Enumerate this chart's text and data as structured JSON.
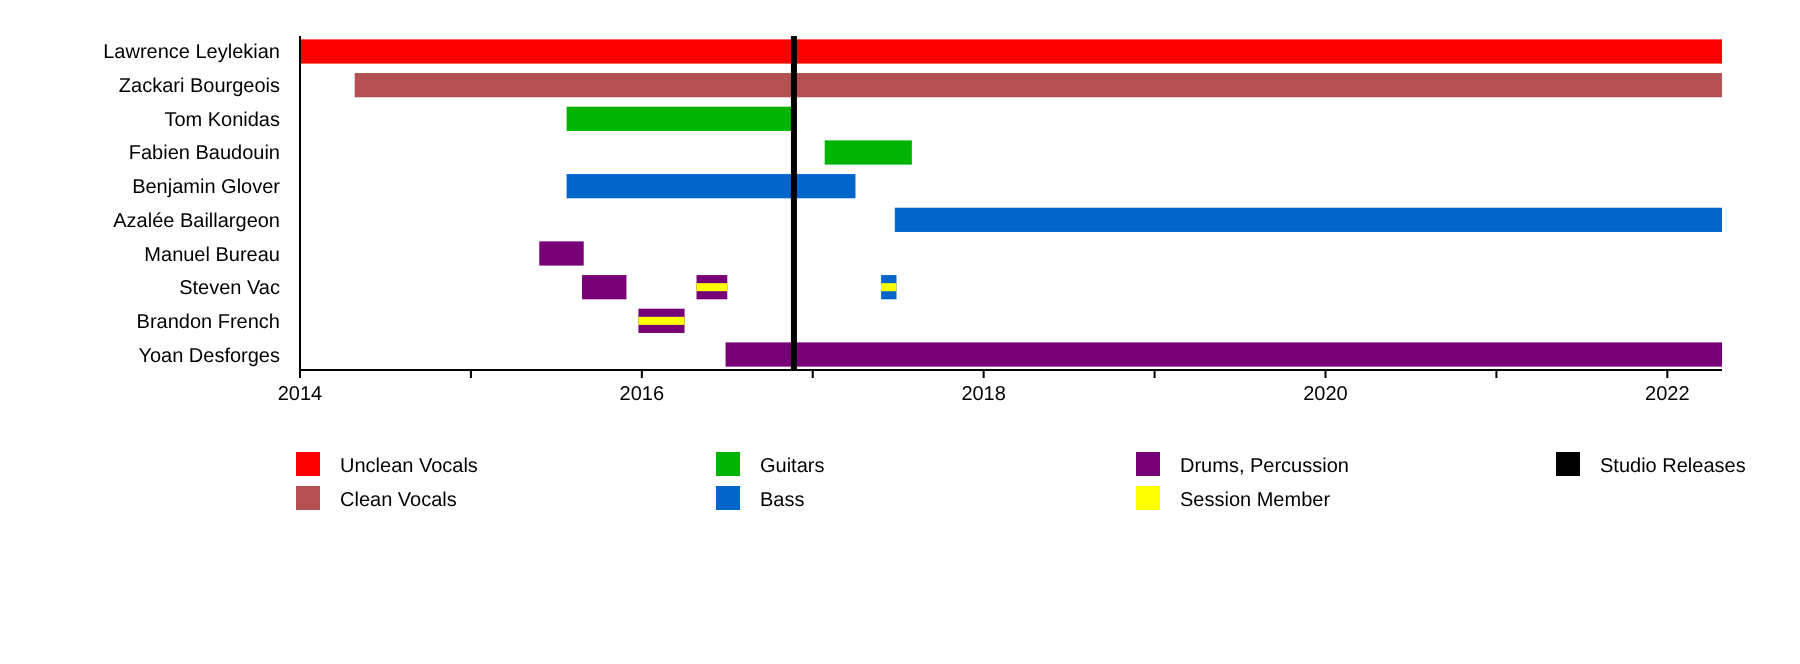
{
  "chart_data": {
    "type": "bar",
    "orientation": "horizontal",
    "categories": [
      "Lawrence Leylekian",
      "Zackari Bourgeois",
      "Tom Konidas",
      "Fabien Baudouin",
      "Benjamin Glover",
      "Azalée Baillargeon",
      "Manuel Bureau",
      "Steven Vac",
      "Brandon French",
      "Yoan Desforges"
    ],
    "xlim": [
      2014,
      2022.32
    ],
    "xticks": [
      2014,
      {
        "value": 2015,
        "label": null
      },
      2016,
      {
        "value": 2017,
        "label": null
      },
      2018,
      {
        "value": 2019,
        "label": null
      },
      2020,
      {
        "value": 2021,
        "label": null
      },
      2022
    ],
    "series": [
      {
        "name": "Unclean Vocals",
        "color": "#ff0000",
        "base": [
          2014,
          null,
          null,
          null,
          null,
          null,
          null,
          null,
          null,
          null
        ],
        "values": [
          8.32,
          null,
          null,
          null,
          null,
          null,
          null,
          null,
          null,
          null
        ]
      },
      {
        "name": "Clean Vocals",
        "color": "#b4504f",
        "base": [
          null,
          2014.32,
          null,
          null,
          null,
          null,
          null,
          null,
          null,
          null
        ],
        "values": [
          null,
          8.0,
          null,
          null,
          null,
          null,
          null,
          null,
          null,
          null
        ]
      },
      {
        "name": "Guitars",
        "color": "#00b400",
        "base": [
          null,
          null,
          2015.56,
          2017.07,
          null,
          null,
          null,
          null,
          null,
          null
        ],
        "values": [
          null,
          null,
          1.33,
          0.51,
          null,
          null,
          null,
          null,
          null,
          null
        ]
      },
      {
        "name": "Bass",
        "color": "#0066cc",
        "base": [
          null,
          null,
          null,
          null,
          2015.56,
          2017.48,
          null,
          2017.4,
          null,
          null
        ],
        "values": [
          null,
          null,
          null,
          null,
          1.69,
          4.84,
          null,
          0.09,
          null,
          null
        ]
      },
      {
        "name": "Drums, Percussion",
        "color": "#770077",
        "base": [
          null,
          null,
          null,
          null,
          null,
          null,
          2015.4,
          2015.65,
          2015.98,
          2016.49
        ],
        "values": [
          null,
          null,
          null,
          null,
          null,
          null,
          0.26,
          0.26,
          0.27,
          5.83
        ]
      },
      {
        "color": "#770077",
        "base": [
          null,
          null,
          null,
          null,
          null,
          null,
          null,
          2016.32,
          null,
          null
        ],
        "values": [
          null,
          null,
          null,
          null,
          null,
          null,
          null,
          0.18,
          null,
          null
        ]
      },
      {
        "name": "Session Member",
        "color": "#ffff00",
        "base": [
          null,
          null,
          null,
          null,
          null,
          null,
          null,
          2016.32,
          2015.98,
          null
        ],
        "values": [
          null,
          null,
          null,
          null,
          null,
          null,
          null,
          0.18,
          0.27,
          null
        ]
      },
      {
        "color": "#ffff00",
        "base": [
          null,
          null,
          null,
          null,
          null,
          null,
          null,
          2017.4,
          null,
          null
        ],
        "values": [
          null,
          null,
          null,
          null,
          null,
          null,
          null,
          0.09,
          null,
          null
        ]
      }
    ],
    "ref_lines": [
      {
        "axis": "x",
        "value": 2016.89,
        "label": "Studio Releases",
        "color": "#000000"
      }
    ],
    "legend": "bottom"
  }
}
